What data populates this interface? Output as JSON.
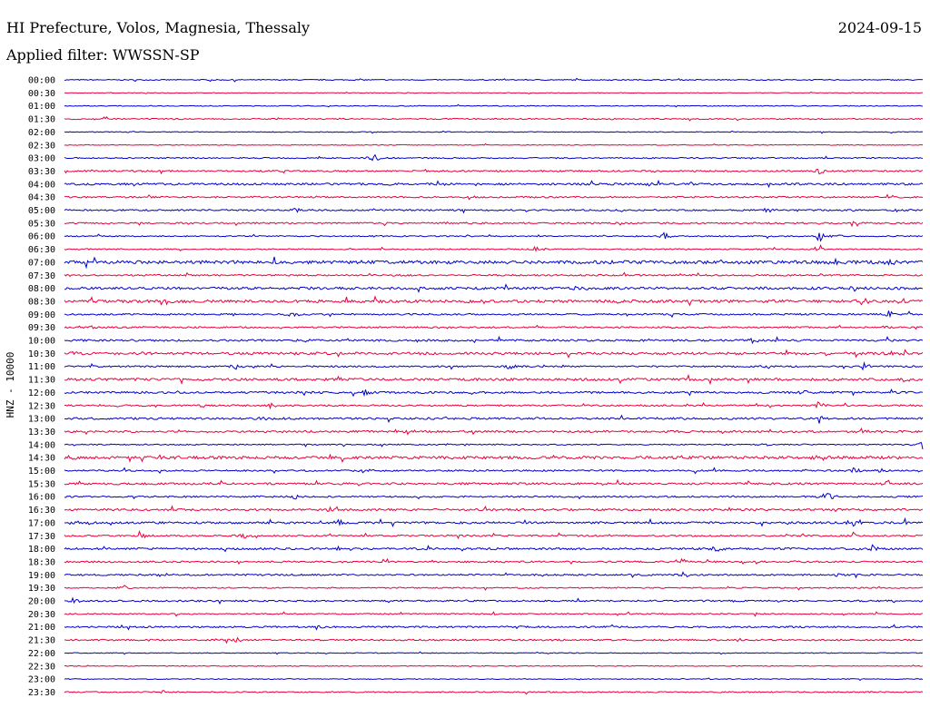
{
  "header": {
    "title": "HI Prefecture, Volos, Magnesia, Thessaly",
    "date": "2024-09-15",
    "filter": "Applied filter: WWSSN-SP"
  },
  "colors": {
    "background": "#ffffff",
    "trace_a": "#0000cc",
    "trace_b": "#e8003d",
    "text": "#000000"
  },
  "chart_data": {
    "type": "line",
    "title": "HI Prefecture, Volos, Magnesia, Thessaly",
    "subtitle": "Applied filter: WWSSN-SP",
    "ylabel": "HNZ - 10000",
    "xlabel": "",
    "row_interval_minutes": 30,
    "color_cycle": [
      "#0000cc",
      "#e8003d"
    ],
    "grid": false,
    "legend": "none",
    "rows": [
      {
        "label": "00:00",
        "noise": 0.25,
        "events": []
      },
      {
        "label": "00:30",
        "noise": 0.15,
        "events": [
          [
            0.12,
            0.3
          ],
          [
            0.4,
            0.3
          ],
          [
            0.92,
            0.5
          ]
        ]
      },
      {
        "label": "01:00",
        "noise": 0.2,
        "events": []
      },
      {
        "label": "01:30",
        "noise": 0.3,
        "events": [
          [
            0.32,
            0.4
          ]
        ]
      },
      {
        "label": "02:00",
        "noise": 0.2,
        "events": [
          [
            0.08,
            0.3
          ],
          [
            0.44,
            0.4
          ]
        ]
      },
      {
        "label": "02:30",
        "noise": 0.2,
        "events": []
      },
      {
        "label": "03:00",
        "noise": 0.3,
        "events": [
          [
            0.36,
            2.6
          ],
          [
            0.98,
            0.3
          ]
        ]
      },
      {
        "label": "03:30",
        "noise": 0.4,
        "events": [
          [
            0.33,
            0.5
          ],
          [
            0.69,
            1.2
          ],
          [
            0.88,
            2.0
          ]
        ]
      },
      {
        "label": "04:00",
        "noise": 0.5,
        "events": [
          [
            0.44,
            0.7
          ],
          [
            0.68,
            0.9
          ],
          [
            0.82,
            0.8
          ]
        ]
      },
      {
        "label": "04:30",
        "noise": 0.4,
        "events": [
          [
            0.1,
            1.0
          ],
          [
            0.47,
            1.8
          ],
          [
            0.96,
            1.6
          ]
        ]
      },
      {
        "label": "05:00",
        "noise": 0.4,
        "events": [
          [
            0.27,
            1.4
          ],
          [
            0.82,
            2.0
          ],
          [
            0.97,
            1.5
          ]
        ]
      },
      {
        "label": "05:30",
        "noise": 0.4,
        "events": [
          [
            0.48,
            0.6
          ],
          [
            0.92,
            2.2
          ]
        ]
      },
      {
        "label": "06:00",
        "noise": 0.3,
        "events": [
          [
            0.36,
            0.5
          ],
          [
            0.7,
            2.2
          ],
          [
            0.88,
            3.0
          ],
          [
            0.9,
            1.8
          ]
        ]
      },
      {
        "label": "06:30",
        "noise": 0.3,
        "events": [
          [
            0.33,
            0.6
          ],
          [
            0.55,
            2.0
          ],
          [
            0.88,
            2.6
          ]
        ]
      },
      {
        "label": "07:00",
        "noise": 0.8,
        "events": [
          [
            0.35,
            0.8
          ],
          [
            0.9,
            1.4
          ],
          [
            0.96,
            2.0
          ]
        ]
      },
      {
        "label": "07:30",
        "noise": 0.4,
        "events": [
          [
            0.38,
            0.8
          ],
          [
            0.72,
            0.6
          ],
          [
            0.88,
            1.2
          ]
        ]
      },
      {
        "label": "08:00",
        "noise": 0.6,
        "events": [
          [
            0.6,
            2.6
          ],
          [
            0.82,
            1.0
          ],
          [
            0.92,
            2.4
          ]
        ]
      },
      {
        "label": "08:30",
        "noise": 0.7,
        "events": [
          [
            0.52,
            0.7
          ],
          [
            0.93,
            2.2
          ]
        ]
      },
      {
        "label": "09:00",
        "noise": 0.4,
        "events": [
          [
            0.27,
            1.6
          ],
          [
            0.85,
            0.7
          ],
          [
            0.96,
            2.2
          ]
        ]
      },
      {
        "label": "09:30",
        "noise": 0.4,
        "events": [
          [
            0.03,
            0.9
          ],
          [
            0.44,
            0.7
          ],
          [
            0.96,
            2.0
          ]
        ]
      },
      {
        "label": "10:00",
        "noise": 0.5,
        "events": [
          [
            0.28,
            1.0
          ],
          [
            0.8,
            2.0
          ],
          [
            0.83,
            1.4
          ]
        ]
      },
      {
        "label": "10:30",
        "noise": 0.6,
        "events": [
          [
            0.01,
            1.4
          ],
          [
            0.96,
            1.8
          ],
          [
            0.98,
            1.6
          ]
        ]
      },
      {
        "label": "11:00",
        "noise": 0.4,
        "events": [
          [
            0.2,
            1.8
          ],
          [
            0.52,
            1.6
          ],
          [
            0.82,
            1.2
          ],
          [
            0.93,
            2.4
          ]
        ]
      },
      {
        "label": "11:30",
        "noise": 0.6,
        "events": [
          [
            0.32,
            1.5
          ],
          [
            0.98,
            1.4
          ]
        ]
      },
      {
        "label": "12:00",
        "noise": 0.5,
        "events": [
          [
            0.35,
            1.8
          ],
          [
            0.86,
            2.0
          ]
        ]
      },
      {
        "label": "12:30",
        "noise": 0.4,
        "events": [
          [
            0.06,
            0.8
          ],
          [
            0.16,
            1.0
          ],
          [
            0.24,
            1.6
          ],
          [
            0.88,
            2.6
          ]
        ]
      },
      {
        "label": "13:00",
        "noise": 0.5,
        "events": [
          [
            0.23,
            1.4
          ],
          [
            0.88,
            2.6
          ]
        ]
      },
      {
        "label": "13:30",
        "noise": 0.5,
        "events": [
          [
            0.4,
            1.4
          ],
          [
            0.93,
            1.8
          ]
        ]
      },
      {
        "label": "14:00",
        "noise": 0.3,
        "events": [
          [
            0.82,
            1.0
          ],
          [
            1.0,
            3.0
          ]
        ]
      },
      {
        "label": "14:30",
        "noise": 0.7,
        "events": [
          [
            0.01,
            1.4
          ],
          [
            0.14,
            1.2
          ],
          [
            0.88,
            1.8
          ]
        ]
      },
      {
        "label": "15:00",
        "noise": 0.4,
        "events": [
          [
            0.35,
            1.2
          ],
          [
            0.92,
            2.4
          ],
          [
            0.95,
            1.8
          ]
        ]
      },
      {
        "label": "15:30",
        "noise": 0.5,
        "events": [
          [
            0.18,
            0.9
          ],
          [
            0.62,
            0.8
          ],
          [
            0.96,
            2.2
          ]
        ]
      },
      {
        "label": "16:00",
        "noise": 0.4,
        "events": [
          [
            0.27,
            1.8
          ],
          [
            0.89,
            2.4
          ]
        ]
      },
      {
        "label": "16:30",
        "noise": 0.5,
        "events": [
          [
            0.06,
            1.0
          ],
          [
            0.31,
            1.2
          ],
          [
            0.9,
            0.8
          ]
        ]
      },
      {
        "label": "17:00",
        "noise": 0.5,
        "events": [
          [
            0.01,
            1.6
          ],
          [
            0.32,
            1.6
          ],
          [
            0.92,
            2.6
          ],
          [
            0.98,
            2.0
          ]
        ]
      },
      {
        "label": "17:30",
        "noise": 0.4,
        "events": [
          [
            0.09,
            1.4
          ],
          [
            0.21,
            2.0
          ],
          [
            0.92,
            2.2
          ]
        ]
      },
      {
        "label": "18:00",
        "noise": 0.5,
        "events": [
          [
            0.06,
            1.0
          ],
          [
            0.32,
            1.4
          ],
          [
            0.76,
            2.6
          ],
          [
            0.94,
            2.0
          ]
        ]
      },
      {
        "label": "18:30",
        "noise": 0.4,
        "events": [
          [
            0.72,
            2.2
          ]
        ]
      },
      {
        "label": "19:00",
        "noise": 0.4,
        "events": [
          [
            0.11,
            1.0
          ],
          [
            0.72,
            2.6
          ],
          [
            0.9,
            1.6
          ]
        ]
      },
      {
        "label": "19:30",
        "noise": 0.3,
        "events": [
          [
            0.07,
            1.4
          ]
        ]
      },
      {
        "label": "20:00",
        "noise": 0.4,
        "events": [
          [
            0.01,
            1.6
          ],
          [
            0.47,
            1.0
          ]
        ]
      },
      {
        "label": "20:30",
        "noise": 0.3,
        "events": [
          [
            0.5,
            0.9
          ]
        ]
      },
      {
        "label": "21:00",
        "noise": 0.4,
        "events": [
          [
            0.3,
            0.7
          ],
          [
            0.52,
            1.2
          ],
          [
            0.68,
            0.7
          ]
        ]
      },
      {
        "label": "21:30",
        "noise": 0.4,
        "events": [
          [
            0.2,
            1.8
          ]
        ]
      },
      {
        "label": "22:00",
        "noise": 0.2,
        "events": []
      },
      {
        "label": "22:30",
        "noise": 0.2,
        "events": []
      },
      {
        "label": "23:00",
        "noise": 0.2,
        "events": []
      },
      {
        "label": "23:30",
        "noise": 0.3,
        "events": []
      }
    ]
  }
}
